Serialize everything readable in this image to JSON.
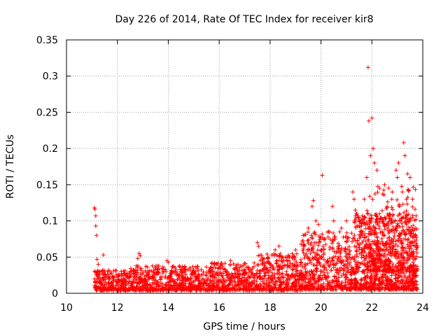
{
  "chart_data": {
    "type": "scatter",
    "title": "Day 226 of 2014, Rate Of TEC Index for receiver kir8",
    "xlabel": "GPS time / hours",
    "ylabel": "ROTI / TECUs",
    "xlim": [
      10,
      24
    ],
    "ylim": [
      0,
      0.35
    ],
    "xticks": [
      10,
      12,
      14,
      16,
      18,
      20,
      22,
      24
    ],
    "xtick_labels": [
      "10",
      "12",
      "14",
      "16",
      "18",
      "20",
      "22",
      "24"
    ],
    "yticks": [
      0,
      0.05,
      0.1,
      0.15,
      0.2,
      0.25,
      0.3,
      0.35
    ],
    "ytick_labels": [
      "0",
      "0.05",
      "0.1",
      "0.15",
      "0.2",
      "0.25",
      "0.3",
      "0.35"
    ],
    "grid": true,
    "marker": "+",
    "color": "#ff0000",
    "series": [
      {
        "name": "ROTI",
        "points": [
          [
            11.1,
            0.118
          ],
          [
            11.12,
            0.116
          ],
          [
            11.15,
            0.107
          ],
          [
            11.15,
            0.093
          ],
          [
            11.18,
            0.08
          ],
          [
            11.2,
            0.047
          ],
          [
            11.25,
            0.04
          ],
          [
            11.45,
            0.053
          ],
          [
            11.1,
            0.02
          ],
          [
            11.3,
            0.03
          ],
          [
            11.5,
            0.025
          ],
          [
            11.7,
            0.02
          ],
          [
            11.9,
            0.022
          ],
          [
            12.2,
            0.025
          ],
          [
            12.5,
            0.03
          ],
          [
            12.8,
            0.048
          ],
          [
            12.85,
            0.055
          ],
          [
            12.9,
            0.052
          ],
          [
            13.2,
            0.03
          ],
          [
            13.6,
            0.028
          ],
          [
            13.95,
            0.045
          ],
          [
            14.0,
            0.043
          ],
          [
            14.3,
            0.03
          ],
          [
            14.6,
            0.03
          ],
          [
            15.0,
            0.028
          ],
          [
            15.5,
            0.025
          ],
          [
            15.85,
            0.035
          ],
          [
            16.1,
            0.04
          ],
          [
            16.45,
            0.045
          ],
          [
            16.7,
            0.035
          ],
          [
            17.0,
            0.03
          ],
          [
            17.3,
            0.035
          ],
          [
            17.5,
            0.07
          ],
          [
            17.55,
            0.065
          ],
          [
            17.7,
            0.04
          ],
          [
            18.0,
            0.04
          ],
          [
            18.2,
            0.06
          ],
          [
            18.35,
            0.065
          ],
          [
            18.6,
            0.05
          ],
          [
            19.0,
            0.06
          ],
          [
            19.3,
            0.08
          ],
          [
            19.5,
            0.09
          ],
          [
            19.65,
            0.12
          ],
          [
            19.7,
            0.128
          ],
          [
            19.8,
            0.1
          ],
          [
            19.9,
            0.095
          ],
          [
            20.05,
            0.163
          ],
          [
            20.3,
            0.085
          ],
          [
            20.45,
            0.12
          ],
          [
            20.5,
            0.1
          ],
          [
            20.8,
            0.09
          ],
          [
            21.0,
            0.1
          ],
          [
            21.25,
            0.14
          ],
          [
            21.3,
            0.13
          ],
          [
            21.35,
            0.115
          ],
          [
            21.5,
            0.1
          ],
          [
            21.7,
            0.13
          ],
          [
            21.8,
            0.16
          ],
          [
            21.85,
            0.312
          ],
          [
            21.88,
            0.238
          ],
          [
            21.95,
            0.19
          ],
          [
            22.0,
            0.242
          ],
          [
            22.05,
            0.2
          ],
          [
            22.1,
            0.18
          ],
          [
            22.2,
            0.17
          ],
          [
            22.3,
            0.145
          ],
          [
            22.5,
            0.15
          ],
          [
            22.6,
            0.12
          ],
          [
            22.8,
            0.14
          ],
          [
            22.95,
            0.17
          ],
          [
            23.0,
            0.16
          ],
          [
            23.05,
            0.18
          ],
          [
            23.2,
            0.14
          ],
          [
            23.25,
            0.208
          ],
          [
            23.3,
            0.19
          ],
          [
            23.4,
            0.165
          ],
          [
            23.5,
            0.16
          ],
          [
            23.6,
            0.13
          ],
          [
            23.7,
            0.09
          ]
        ],
        "bands": [
          {
            "x": [
              11.1,
              12.5
            ],
            "y_low": 0.004,
            "y_high": 0.032,
            "n": 260
          },
          {
            "x": [
              12.5,
              15.5
            ],
            "y_low": 0.004,
            "y_high": 0.038,
            "n": 540
          },
          {
            "x": [
              15.5,
              17.5
            ],
            "y_low": 0.004,
            "y_high": 0.042,
            "n": 360
          },
          {
            "x": [
              17.5,
              19.2
            ],
            "y_low": 0.004,
            "y_high": 0.055,
            "n": 340
          },
          {
            "x": [
              19.2,
              21.3
            ],
            "y_low": 0.005,
            "y_high": 0.085,
            "n": 520
          },
          {
            "x": [
              21.3,
              23.8
            ],
            "y_low": 0.005,
            "y_high": 0.11,
            "n": 900
          },
          {
            "x": [
              21.8,
              23.8
            ],
            "y_low": 0.03,
            "y_high": 0.15,
            "n": 260
          }
        ]
      }
    ]
  }
}
